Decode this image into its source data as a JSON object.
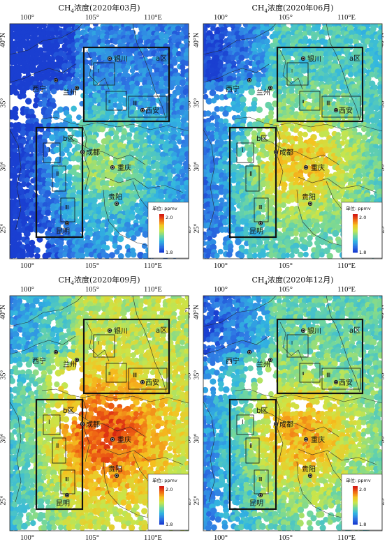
{
  "colorbar": {
    "unit_label": "单位: ppmv",
    "max_label": "2.0",
    "min_label": "1.8",
    "colors": [
      "#1a3fd1",
      "#2f79e4",
      "#32b7e0",
      "#6fd6a0",
      "#c9e64a",
      "#f5c320",
      "#f06a14",
      "#d41a12"
    ]
  },
  "x_ticks": [
    "100°",
    "105°",
    "110°E"
  ],
  "y_ticks": [
    "40°N",
    "35°",
    "30°",
    "25°"
  ],
  "cities": {
    "yinchuan": "银川",
    "xining": "西宁",
    "lanzhou": "兰州",
    "xian": "西安",
    "chengdu": "成都",
    "chongqing": "重庆",
    "guiyang": "贵阳",
    "kunming": "昆明"
  },
  "regions": {
    "a": "a区",
    "b": "b区",
    "r1": "Ⅰ",
    "r2": "Ⅱ",
    "r3": "Ⅲ"
  },
  "panels": [
    {
      "title_pre": "CH",
      "title_sub": "4",
      "title_post": "浓度(2020年03月)",
      "level": 0.15
    },
    {
      "title_pre": "CH",
      "title_sub": "4",
      "title_post": "浓度(2020年06月)",
      "level": 0.35
    },
    {
      "title_pre": "CH",
      "title_sub": "4",
      "title_post": "浓度(2020年09月)",
      "level": 0.55
    },
    {
      "title_pre": "CH",
      "title_sub": "4",
      "title_post": "浓度(2020年12月)",
      "level": 0.4
    }
  ]
}
